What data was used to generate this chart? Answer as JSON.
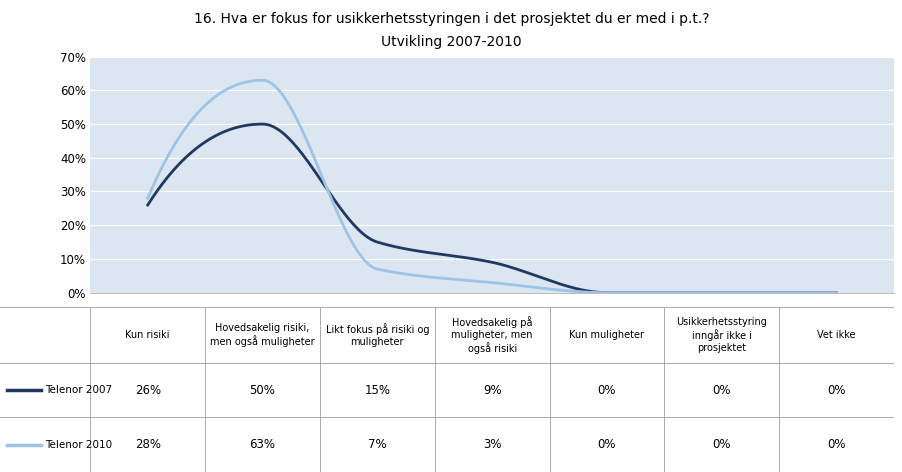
{
  "title_line1": "16. Hva er fokus for usikkerhetsstyringen i det prosjektet du er med i p.t.?",
  "title_line2": "Utvikling 2007-2010",
  "categories": [
    "Kun risiki",
    "Hovedsakelig risiki,\nmen også muligheter",
    "Likt fokus på risiki og\nmuligheter",
    "Hovedsakelig på\nmuligheter, men\nogså risiki",
    "Kun muligheter",
    "Usikkerhetsstyring\ninngår ikke i\nprosjektet",
    "Vet ikke"
  ],
  "telenor2007": [
    0.26,
    0.5,
    0.15,
    0.09,
    0.0,
    0.0,
    0.0
  ],
  "telenor2010": [
    0.28,
    0.63,
    0.07,
    0.03,
    0.0,
    0.0,
    0.0
  ],
  "telenor2007_labels": [
    "26%",
    "50%",
    "15%",
    "9%",
    "0%",
    "0%",
    "0%"
  ],
  "telenor2010_labels": [
    "28%",
    "63%",
    "7%",
    "3%",
    "0%",
    "0%",
    "0%"
  ],
  "color_2007": "#1F3864",
  "color_2010": "#9DC3E6",
  "ylim": [
    0.0,
    0.7
  ],
  "yticks": [
    0.0,
    0.1,
    0.2,
    0.3,
    0.4,
    0.5,
    0.6,
    0.7
  ],
  "ytick_labels": [
    "0%",
    "10%",
    "20%",
    "30%",
    "40%",
    "50%",
    "60%",
    "70%"
  ],
  "bg_color": "#DCE6F1",
  "legend_label_2007": "Telenor 2007",
  "legend_label_2010": "Telenor 2010",
  "fig_width": 9.03,
  "fig_height": 4.72,
  "dpi": 100
}
